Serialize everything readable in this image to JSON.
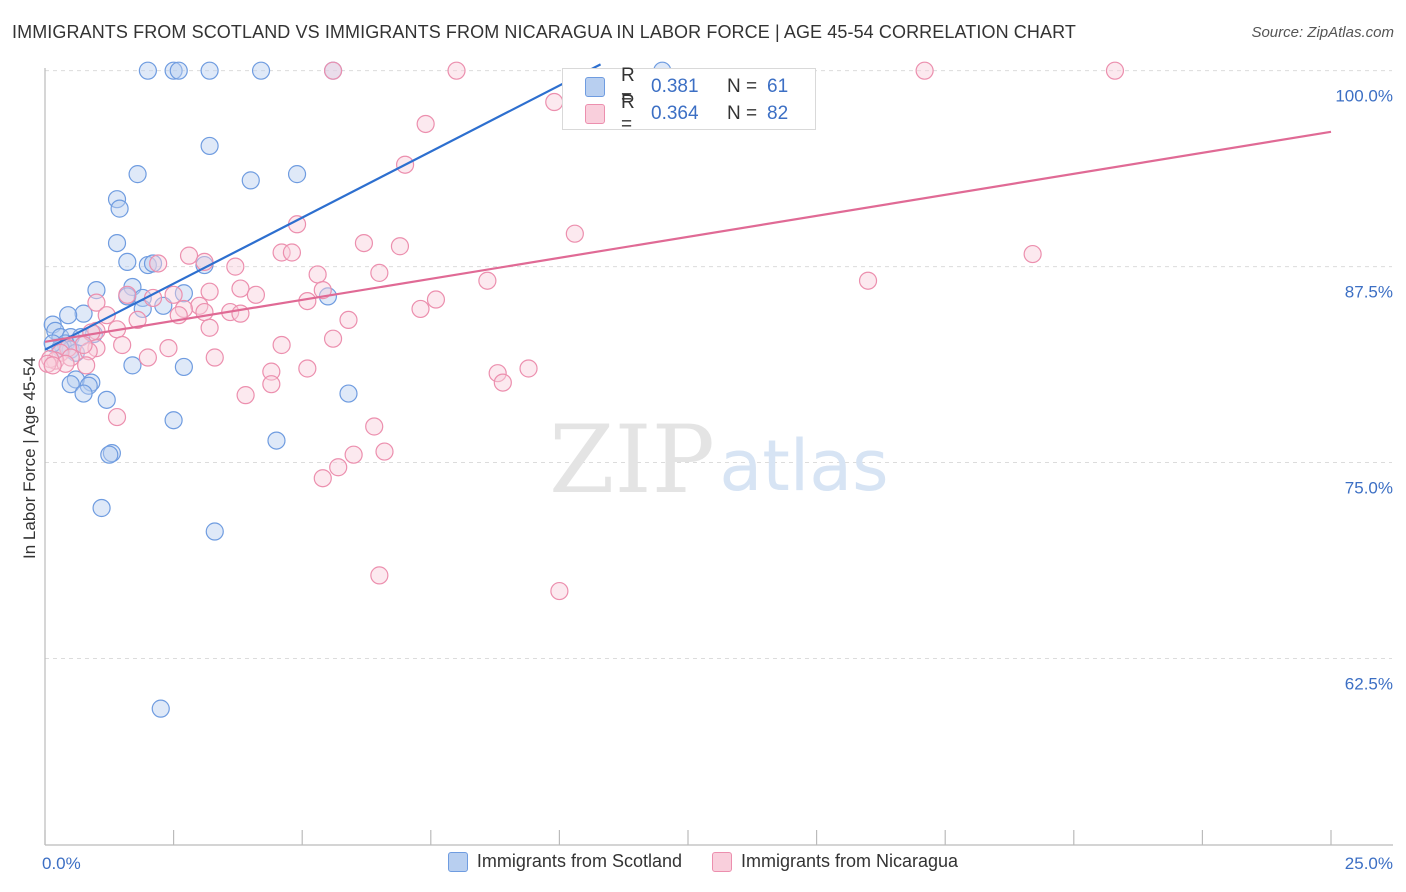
{
  "title": "IMMIGRANTS FROM SCOTLAND VS IMMIGRANTS FROM NICARAGUA IN LABOR FORCE | AGE 45-54 CORRELATION CHART",
  "source": "Source: ZipAtlas.com",
  "watermark": {
    "zip": "ZIP",
    "atlas": "atlas"
  },
  "stats": [
    {
      "r_label": "R =",
      "r_value": "0.381",
      "n_label": "N =",
      "n_value": "61",
      "color": "#6f9ce0"
    },
    {
      "r_label": "R =",
      "r_value": "0.364",
      "n_label": "N =",
      "n_value": "82",
      "color": "#ec8fae"
    }
  ],
  "legend": [
    {
      "label": "Immigrants from Scotland",
      "color": "#6f9ce0"
    },
    {
      "label": "Immigrants from Nicaragua",
      "color": "#ec8fae"
    }
  ],
  "chart_data": {
    "type": "scatter",
    "title": "IMMIGRANTS FROM SCOTLAND VS IMMIGRANTS FROM NICARAGUA IN LABOR FORCE | AGE 45-54 CORRELATION CHART",
    "xlabel": "",
    "ylabel": "In Labor Force | Age 45-54",
    "xlim": [
      0,
      25
    ],
    "ylim": [
      50.6,
      101
    ],
    "x_tick_labels": [
      "0.0%",
      "25.0%"
    ],
    "y_ticks": [
      62.5,
      75.0,
      87.5,
      100.0
    ],
    "y_tick_labels": [
      "62.5%",
      "75.0%",
      "87.5%",
      "100.0%"
    ],
    "grid": true,
    "legend_position": "bottom",
    "series": [
      {
        "name": "Immigrants from Scotland",
        "color": "#6f9ce0",
        "trend": {
          "x0": 0.0,
          "y0": 82.2,
          "x1": 10.8,
          "y1": 100.4
        },
        "points": [
          [
            2.0,
            100
          ],
          [
            2.5,
            100
          ],
          [
            2.6,
            100
          ],
          [
            3.2,
            100
          ],
          [
            4.2,
            100
          ],
          [
            5.6,
            100
          ],
          [
            12.0,
            100
          ],
          [
            3.2,
            95.2
          ],
          [
            1.8,
            93.4
          ],
          [
            4.0,
            93.0
          ],
          [
            4.9,
            93.4
          ],
          [
            1.4,
            91.8
          ],
          [
            1.45,
            91.2
          ],
          [
            1.4,
            89.0
          ],
          [
            1.6,
            87.8
          ],
          [
            2.0,
            87.6
          ],
          [
            3.1,
            87.6
          ],
          [
            2.1,
            87.7
          ],
          [
            1.0,
            86.0
          ],
          [
            1.7,
            86.2
          ],
          [
            1.6,
            85.6
          ],
          [
            1.9,
            85.5
          ],
          [
            2.7,
            85.8
          ],
          [
            5.5,
            85.6
          ],
          [
            2.3,
            85.0
          ],
          [
            1.9,
            84.8
          ],
          [
            0.75,
            84.5
          ],
          [
            0.45,
            84.4
          ],
          [
            0.15,
            83.8
          ],
          [
            0.2,
            83.4
          ],
          [
            0.3,
            83.0
          ],
          [
            0.5,
            83.0
          ],
          [
            0.95,
            83.2
          ],
          [
            0.4,
            82.6
          ],
          [
            0.35,
            82.4
          ],
          [
            0.5,
            82.2
          ],
          [
            0.3,
            82.3
          ],
          [
            0.15,
            82.6
          ],
          [
            0.6,
            82.0
          ],
          [
            0.7,
            83.0
          ],
          [
            1.7,
            81.2
          ],
          [
            2.7,
            81.1
          ],
          [
            0.6,
            80.3
          ],
          [
            0.9,
            80.1
          ],
          [
            0.5,
            80.0
          ],
          [
            0.85,
            79.9
          ],
          [
            0.75,
            79.4
          ],
          [
            1.2,
            79.0
          ],
          [
            5.9,
            79.4
          ],
          [
            2.5,
            77.7
          ],
          [
            4.5,
            76.4
          ],
          [
            1.3,
            75.6
          ],
          [
            1.25,
            75.5
          ],
          [
            1.1,
            72.1
          ],
          [
            3.3,
            70.6
          ],
          [
            2.25,
            59.3
          ]
        ]
      },
      {
        "name": "Immigrants from Nicaragua",
        "color": "#ec8fae",
        "trend": {
          "x0": 0.0,
          "y0": 82.7,
          "x1": 25.0,
          "y1": 96.1
        },
        "points": [
          [
            5.6,
            100
          ],
          [
            8.0,
            100
          ],
          [
            17.1,
            100
          ],
          [
            20.8,
            100
          ],
          [
            9.9,
            98.0
          ],
          [
            7.4,
            96.6
          ],
          [
            7.0,
            94.0
          ],
          [
            10.3,
            89.6
          ],
          [
            4.9,
            90.2
          ],
          [
            6.2,
            89.0
          ],
          [
            6.9,
            88.8
          ],
          [
            19.2,
            88.3
          ],
          [
            4.6,
            88.4
          ],
          [
            4.8,
            88.4
          ],
          [
            2.8,
            88.2
          ],
          [
            3.1,
            87.8
          ],
          [
            3.7,
            87.5
          ],
          [
            2.2,
            87.7
          ],
          [
            5.3,
            87.0
          ],
          [
            6.5,
            87.1
          ],
          [
            8.6,
            86.6
          ],
          [
            16.0,
            86.6
          ],
          [
            3.8,
            86.1
          ],
          [
            5.4,
            86.0
          ],
          [
            4.1,
            85.7
          ],
          [
            3.2,
            85.9
          ],
          [
            2.5,
            85.7
          ],
          [
            1.6,
            85.7
          ],
          [
            2.1,
            85.5
          ],
          [
            5.1,
            85.3
          ],
          [
            1.0,
            85.2
          ],
          [
            3.0,
            85.0
          ],
          [
            7.6,
            85.4
          ],
          [
            7.3,
            84.8
          ],
          [
            3.6,
            84.6
          ],
          [
            3.8,
            84.5
          ],
          [
            2.7,
            84.8
          ],
          [
            3.1,
            84.6
          ],
          [
            2.6,
            84.4
          ],
          [
            1.2,
            84.4
          ],
          [
            1.8,
            84.1
          ],
          [
            5.9,
            84.1
          ],
          [
            3.2,
            83.6
          ],
          [
            1.4,
            83.5
          ],
          [
            1.0,
            83.4
          ],
          [
            0.9,
            83.3
          ],
          [
            5.6,
            82.9
          ],
          [
            4.6,
            82.5
          ],
          [
            2.4,
            82.3
          ],
          [
            1.5,
            82.5
          ],
          [
            1.0,
            82.3
          ],
          [
            0.85,
            82.1
          ],
          [
            0.75,
            82.5
          ],
          [
            0.45,
            82.3
          ],
          [
            0.3,
            82.0
          ],
          [
            0.5,
            81.7
          ],
          [
            0.2,
            81.5
          ],
          [
            0.1,
            81.6
          ],
          [
            0.4,
            81.3
          ],
          [
            0.8,
            81.2
          ],
          [
            0.05,
            81.3
          ],
          [
            0.15,
            81.2
          ],
          [
            2.0,
            81.7
          ],
          [
            3.3,
            81.7
          ],
          [
            4.4,
            80.8
          ],
          [
            5.1,
            81.0
          ],
          [
            8.8,
            80.7
          ],
          [
            9.4,
            81.0
          ],
          [
            8.9,
            80.1
          ],
          [
            4.4,
            80.0
          ],
          [
            3.9,
            79.3
          ],
          [
            1.4,
            77.9
          ],
          [
            6.4,
            77.3
          ],
          [
            6.6,
            75.7
          ],
          [
            6.0,
            75.5
          ],
          [
            5.7,
            74.7
          ],
          [
            5.4,
            74.0
          ],
          [
            6.5,
            67.8
          ],
          [
            10.0,
            66.8
          ]
        ]
      }
    ]
  }
}
